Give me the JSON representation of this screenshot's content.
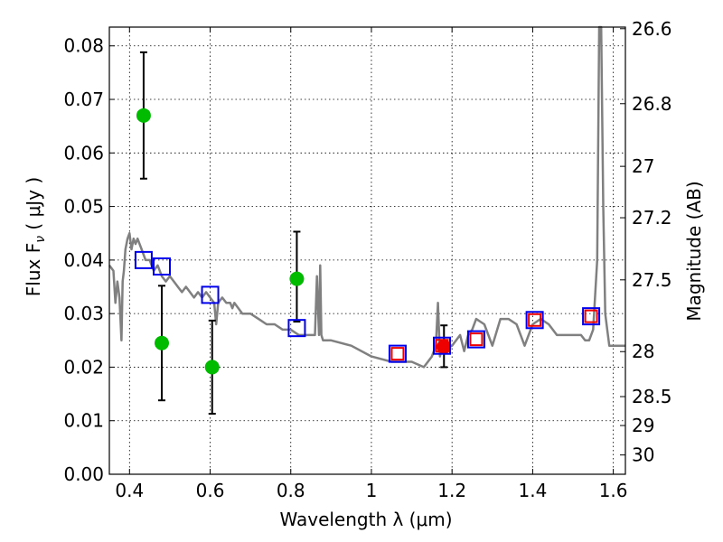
{
  "chart_data": {
    "type": "scatter",
    "xlabel": "Wavelength  λ (μm)",
    "ylabel": "Flux  F",
    "ylabel_sub": "ν",
    "ylabel_unit": " ( μJy )",
    "y2label": "Magnitude (AB)",
    "xlim": [
      0.35,
      1.63
    ],
    "ylim": [
      0,
      0.0835
    ],
    "grid": true,
    "x_ticks": [
      0.4,
      0.6,
      0.8,
      1.0,
      1.2,
      1.4,
      1.6
    ],
    "x_tick_labels": [
      "0.4",
      "0.6",
      "0.8",
      "1",
      "1.2",
      "1.4",
      "1.6"
    ],
    "y_ticks": [
      0,
      0.01,
      0.02,
      0.03,
      0.04,
      0.05,
      0.06,
      0.07,
      0.08
    ],
    "y_tick_labels": [
      "0.00",
      "0.01",
      "0.02",
      "0.03",
      "0.04",
      "0.05",
      "0.06",
      "0.07",
      "0.08"
    ],
    "y2_ticks": [
      {
        "label": "26.6",
        "flux": 0.0832
      },
      {
        "label": "26.8",
        "flux": 0.0692
      },
      {
        "label": "27",
        "flux": 0.0575
      },
      {
        "label": "27.2",
        "flux": 0.0479
      },
      {
        "label": "27.5",
        "flux": 0.0363
      },
      {
        "label": "28",
        "flux": 0.0229
      },
      {
        "label": "28.5",
        "flux": 0.0145
      },
      {
        "label": "29",
        "flux": 0.0091
      },
      {
        "label": "30",
        "flux": 0.0036
      }
    ],
    "model_spectrum": {
      "color": "#808080",
      "x": [
        0.35,
        0.36,
        0.365,
        0.37,
        0.375,
        0.38,
        0.383,
        0.386,
        0.39,
        0.395,
        0.4,
        0.405,
        0.41,
        0.415,
        0.42,
        0.43,
        0.44,
        0.45,
        0.46,
        0.47,
        0.48,
        0.49,
        0.5,
        0.51,
        0.52,
        0.53,
        0.54,
        0.55,
        0.56,
        0.57,
        0.58,
        0.59,
        0.6,
        0.61,
        0.615,
        0.62,
        0.63,
        0.64,
        0.65,
        0.655,
        0.66,
        0.68,
        0.7,
        0.72,
        0.74,
        0.76,
        0.78,
        0.8,
        0.82,
        0.84,
        0.86,
        0.865,
        0.87,
        0.873,
        0.876,
        0.88,
        0.9,
        0.95,
        1.0,
        1.05,
        1.1,
        1.13,
        1.15,
        1.16,
        1.165,
        1.17,
        1.175,
        1.18,
        1.2,
        1.22,
        1.23,
        1.24,
        1.25,
        1.26,
        1.28,
        1.3,
        1.32,
        1.34,
        1.36,
        1.38,
        1.4,
        1.42,
        1.44,
        1.46,
        1.48,
        1.5,
        1.52,
        1.53,
        1.54,
        1.55,
        1.56,
        1.565,
        1.57,
        1.575,
        1.58,
        1.585,
        1.59,
        1.6,
        1.63
      ],
      "y": [
        0.039,
        0.038,
        0.032,
        0.036,
        0.033,
        0.025,
        0.036,
        0.038,
        0.042,
        0.044,
        0.045,
        0.042,
        0.044,
        0.043,
        0.044,
        0.042,
        0.04,
        0.04,
        0.038,
        0.039,
        0.037,
        0.036,
        0.037,
        0.036,
        0.035,
        0.034,
        0.035,
        0.034,
        0.033,
        0.034,
        0.033,
        0.034,
        0.033,
        0.032,
        0.028,
        0.032,
        0.033,
        0.032,
        0.032,
        0.031,
        0.032,
        0.03,
        0.03,
        0.029,
        0.028,
        0.028,
        0.027,
        0.027,
        0.026,
        0.026,
        0.026,
        0.037,
        0.026,
        0.039,
        0.026,
        0.025,
        0.025,
        0.024,
        0.022,
        0.021,
        0.021,
        0.02,
        0.022,
        0.024,
        0.032,
        0.022,
        0.024,
        0.024,
        0.024,
        0.026,
        0.023,
        0.026,
        0.027,
        0.029,
        0.028,
        0.024,
        0.029,
        0.029,
        0.028,
        0.024,
        0.028,
        0.029,
        0.028,
        0.026,
        0.026,
        0.026,
        0.026,
        0.025,
        0.025,
        0.027,
        0.04,
        0.0835,
        0.0835,
        0.05,
        0.03,
        0.027,
        0.024,
        0.024,
        0.024
      ]
    },
    "series": [
      {
        "marker": "circle",
        "color": "#00bb00",
        "x": [
          0.435,
          0.48,
          0.605,
          0.815
        ],
        "y": [
          0.067,
          0.0245,
          0.02,
          0.0365
        ],
        "err_lo": [
          0.0118,
          0.0107,
          0.0087,
          0.008
        ],
        "err_hi": [
          0.0118,
          0.0107,
          0.0087,
          0.0088
        ]
      },
      {
        "marker": "circle",
        "color": "#ee0000",
        "x": [
          1.18
        ],
        "y": [
          0.0238
        ],
        "err_lo": [
          0.0038
        ],
        "err_hi": [
          0.004
        ]
      },
      {
        "marker": "square-open",
        "color": "#0000ee",
        "size": 18,
        "x": [
          0.435,
          0.48,
          0.6,
          0.815,
          1.065,
          1.175,
          1.26,
          1.405,
          1.545
        ],
        "y": [
          0.04,
          0.0388,
          0.0335,
          0.0273,
          0.0225,
          0.024,
          0.0252,
          0.0288,
          0.0295
        ]
      },
      {
        "marker": "square-open",
        "color": "#ee0000",
        "size": 13,
        "x": [
          1.065,
          1.175,
          1.26,
          1.405,
          1.545
        ],
        "y": [
          0.0225,
          0.024,
          0.0252,
          0.0288,
          0.0295
        ]
      }
    ]
  }
}
